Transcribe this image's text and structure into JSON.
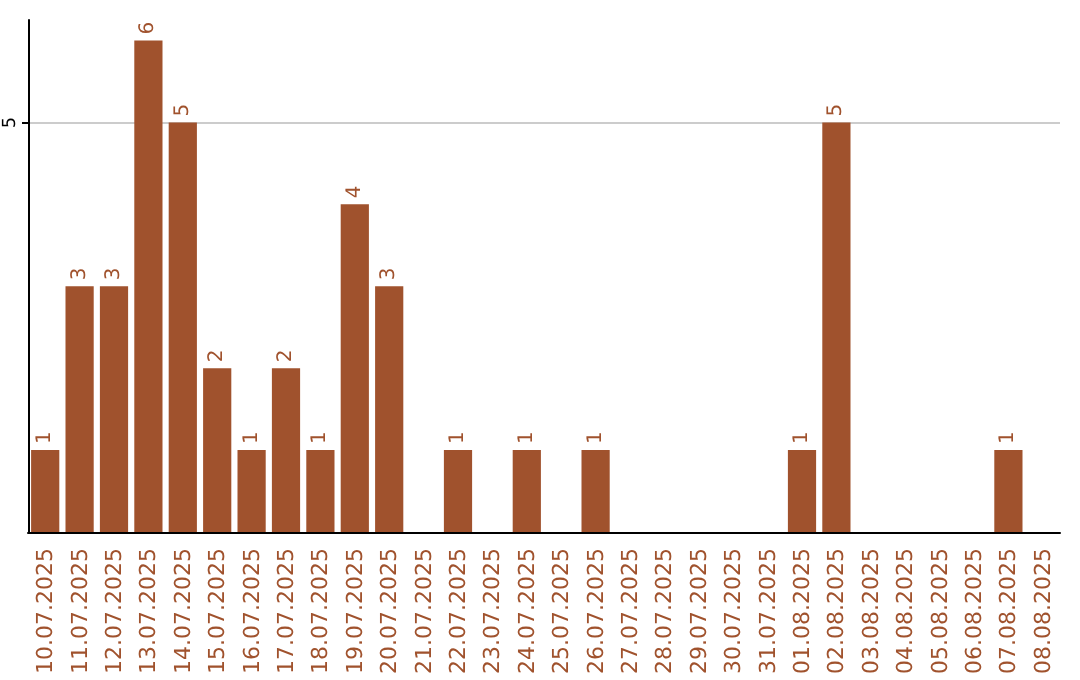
{
  "chart_data": {
    "type": "bar",
    "categories": [
      "10.07.2025",
      "11.07.2025",
      "12.07.2025",
      "13.07.2025",
      "14.07.2025",
      "15.07.2025",
      "16.07.2025",
      "17.07.2025",
      "18.07.2025",
      "19.07.2025",
      "20.07.2025",
      "21.07.2025",
      "22.07.2025",
      "23.07.2025",
      "24.07.2025",
      "25.07.2025",
      "26.07.2025",
      "27.07.2025",
      "28.07.2025",
      "29.07.2025",
      "30.07.2025",
      "31.07.2025",
      "01.08.2025",
      "02.08.2025",
      "03.08.2025",
      "04.08.2025",
      "05.08.2025",
      "06.08.2025",
      "07.08.2025",
      "08.08.2025"
    ],
    "values": [
      1,
      3,
      3,
      6,
      5,
      2,
      1,
      2,
      1,
      4,
      3,
      0,
      1,
      0,
      1,
      0,
      1,
      0,
      0,
      0,
      0,
      0,
      1,
      5,
      0,
      0,
      0,
      0,
      1,
      0
    ],
    "value_labels": [
      "1",
      "3",
      "3",
      "6",
      "5",
      "2",
      "1",
      "2",
      "1",
      "4",
      "3",
      null,
      "1",
      null,
      "1",
      null,
      "1",
      null,
      null,
      null,
      null,
      null,
      "1",
      "5",
      null,
      null,
      null,
      null,
      "1",
      null
    ],
    "color": "#a0522d",
    "ylim": [
      0,
      6.25
    ],
    "yticks": [
      5
    ],
    "grid": "y"
  }
}
